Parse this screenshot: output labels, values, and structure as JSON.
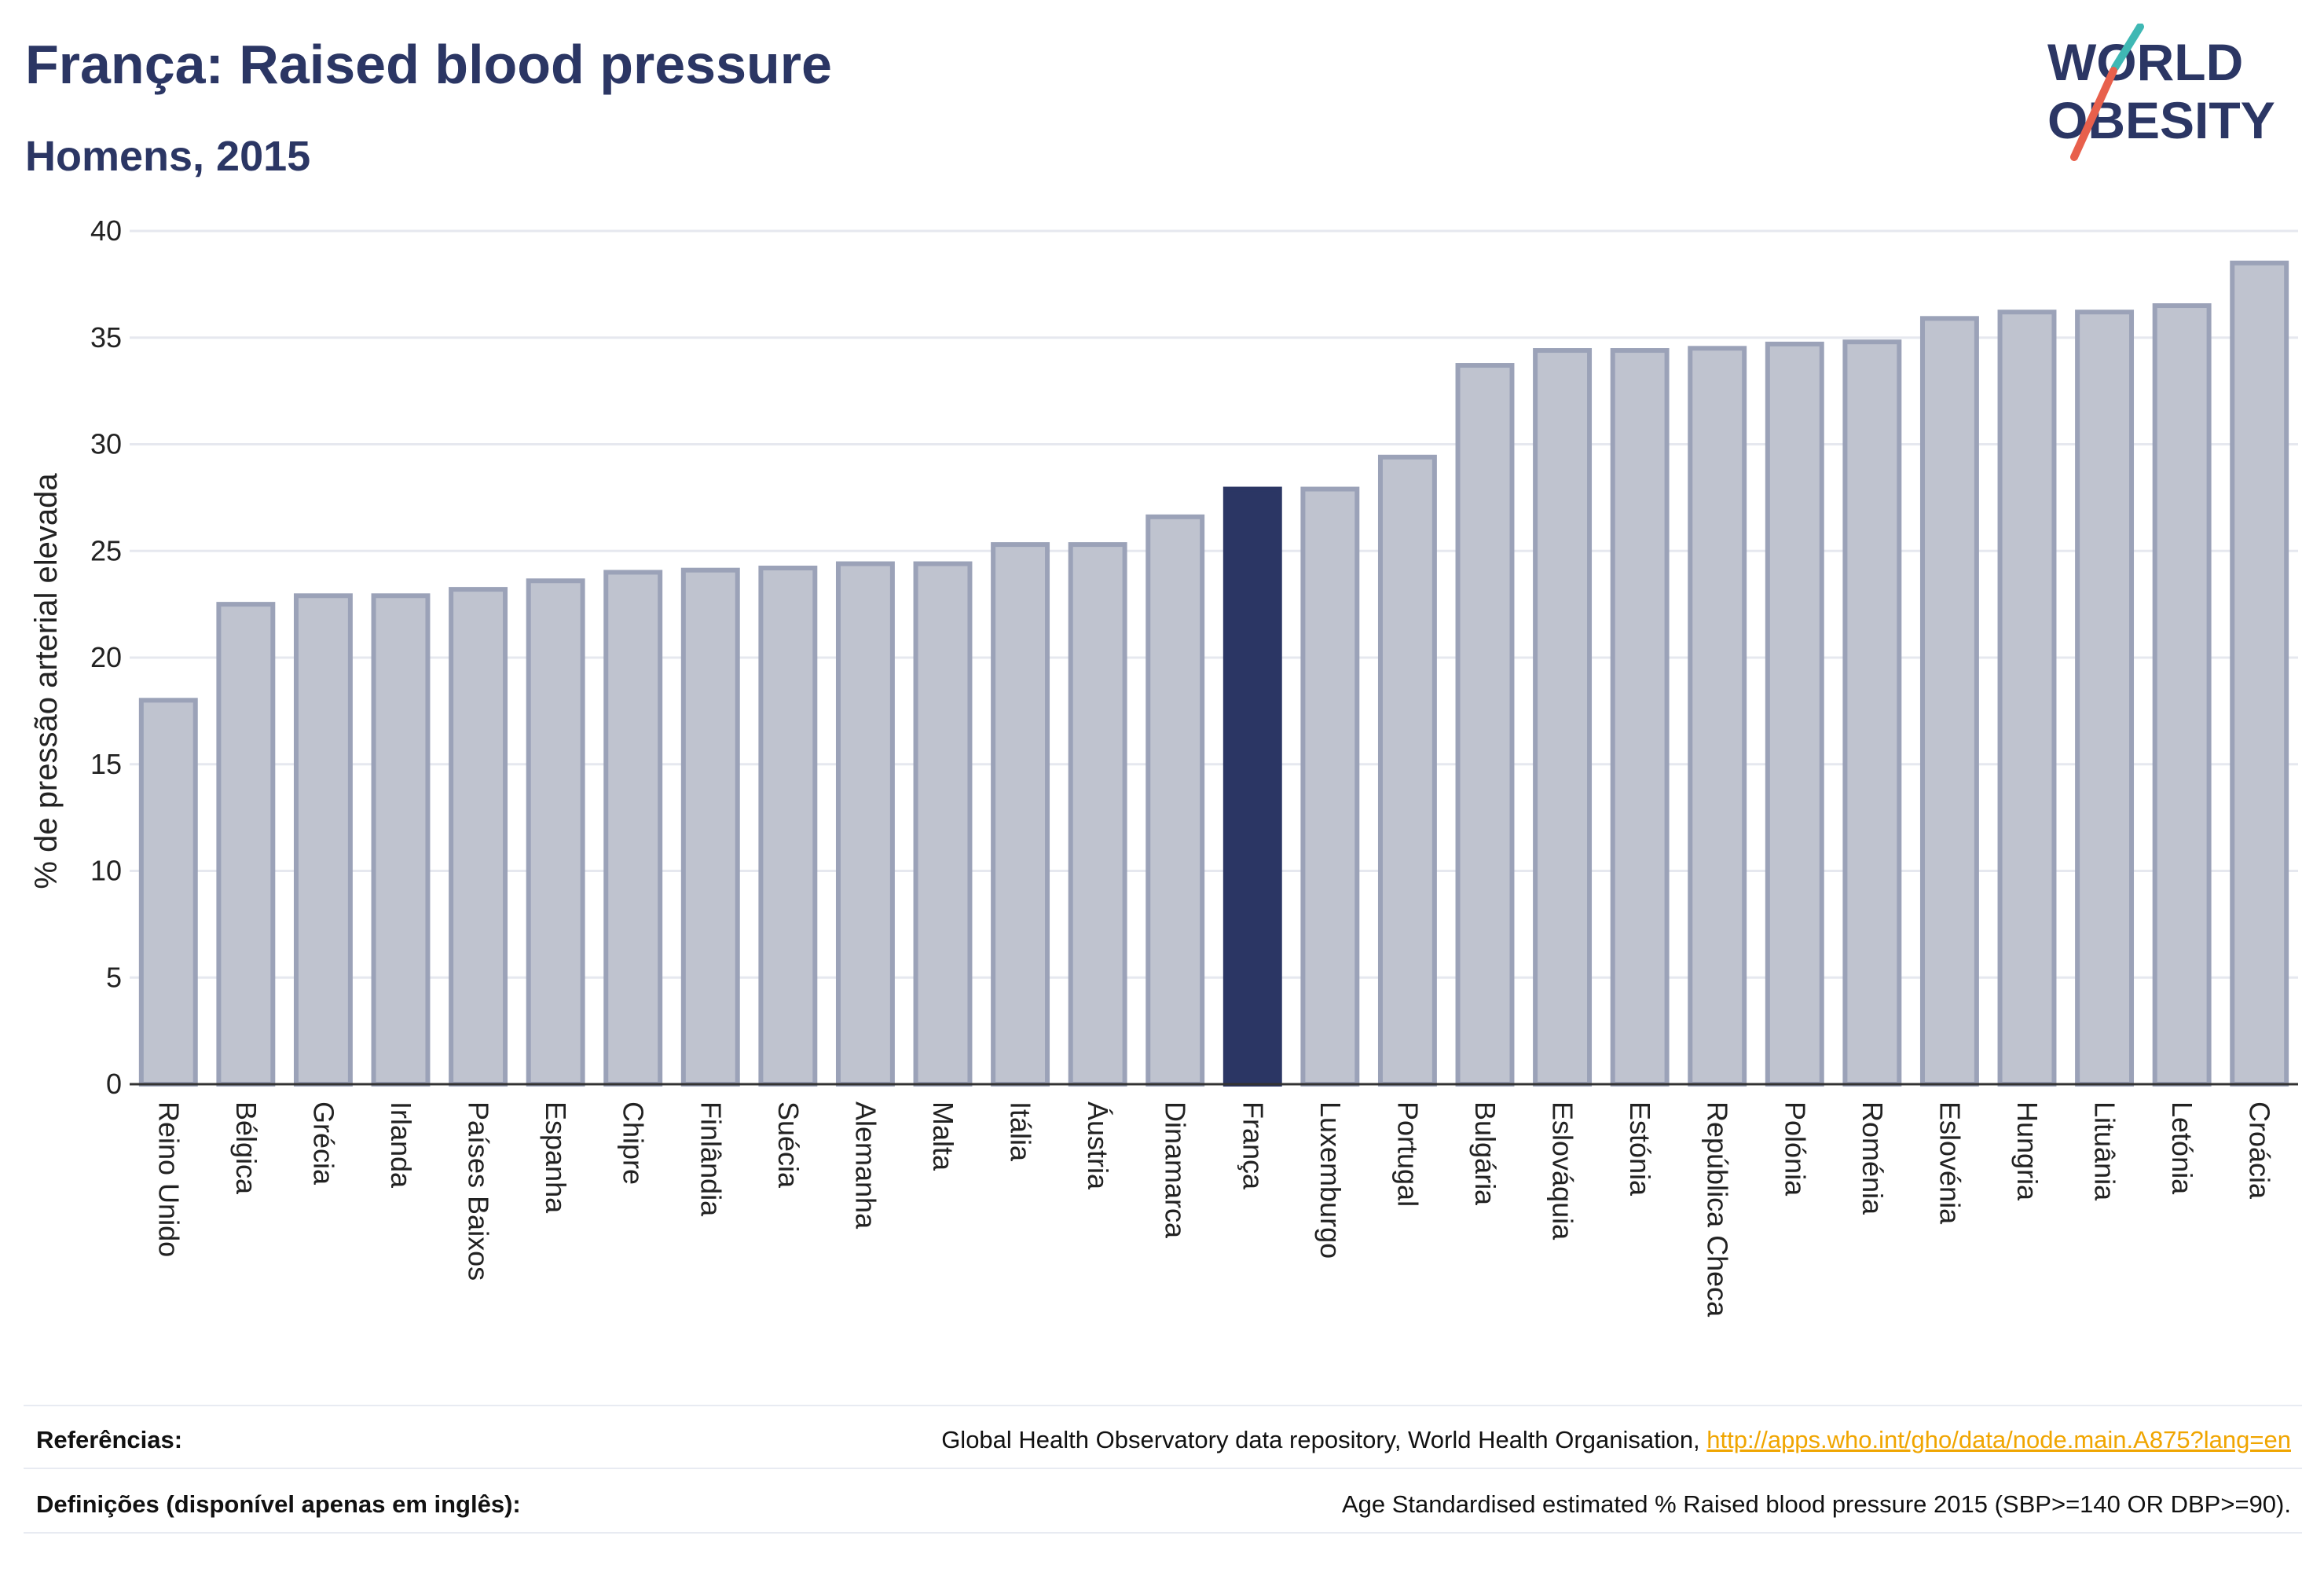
{
  "header": {
    "title": "França: Raised blood pressure",
    "subtitle": "Homens, 2015"
  },
  "logo": {
    "line1": "WORLD",
    "line2": "OBESITY",
    "colors": {
      "text": "#2b3664",
      "slash_teal": "#3fb8b4",
      "slash_coral": "#e8604c"
    }
  },
  "chart_data": {
    "type": "bar",
    "ylabel": "% de pressão arterial elevada",
    "ylim": [
      0,
      40
    ],
    "yticks": [
      0,
      5,
      10,
      15,
      20,
      25,
      30,
      35,
      40
    ],
    "grid": true,
    "highlight": "França",
    "colors": {
      "bar": "#bfc3cf",
      "bar_edge": "#9ba2b8",
      "highlight": "#2b3664",
      "grid": "#e6e8ef",
      "axis": "#333333"
    },
    "categories": [
      "Reino Unido",
      "Bélgica",
      "Grécia",
      "Irlanda",
      "Países Baixos",
      "Espanha",
      "Chipre",
      "Finlândia",
      "Suécia",
      "Alemanha",
      "Malta",
      "Itália",
      "Áustria",
      "Dinamarca",
      "França",
      "Luxemburgo",
      "Portugal",
      "Bulgária",
      "Eslováquia",
      "Estónia",
      "República Checa",
      "Polónia",
      "Roménia",
      "Eslovénia",
      "Hungria",
      "Lituânia",
      "Letónia",
      "Croácia"
    ],
    "values": [
      18.0,
      22.5,
      22.9,
      22.9,
      23.2,
      23.6,
      24.0,
      24.1,
      24.2,
      24.4,
      24.4,
      25.3,
      25.3,
      26.6,
      27.9,
      27.9,
      29.4,
      33.7,
      34.4,
      34.4,
      34.5,
      34.7,
      34.8,
      35.9,
      36.2,
      36.2,
      36.5,
      38.5
    ]
  },
  "footer": {
    "references_label": "Referências:",
    "references_text": "Global Health Observatory data repository, World Health Organisation, ",
    "references_link": "http://apps.who.int/gho/data/node.main.A875?lang=en",
    "definitions_label": "Definições (disponível apenas em inglês):",
    "definitions_text": "Age Standardised estimated % Raised blood pressure 2015 (SBP>=140 OR DBP>=90)."
  }
}
